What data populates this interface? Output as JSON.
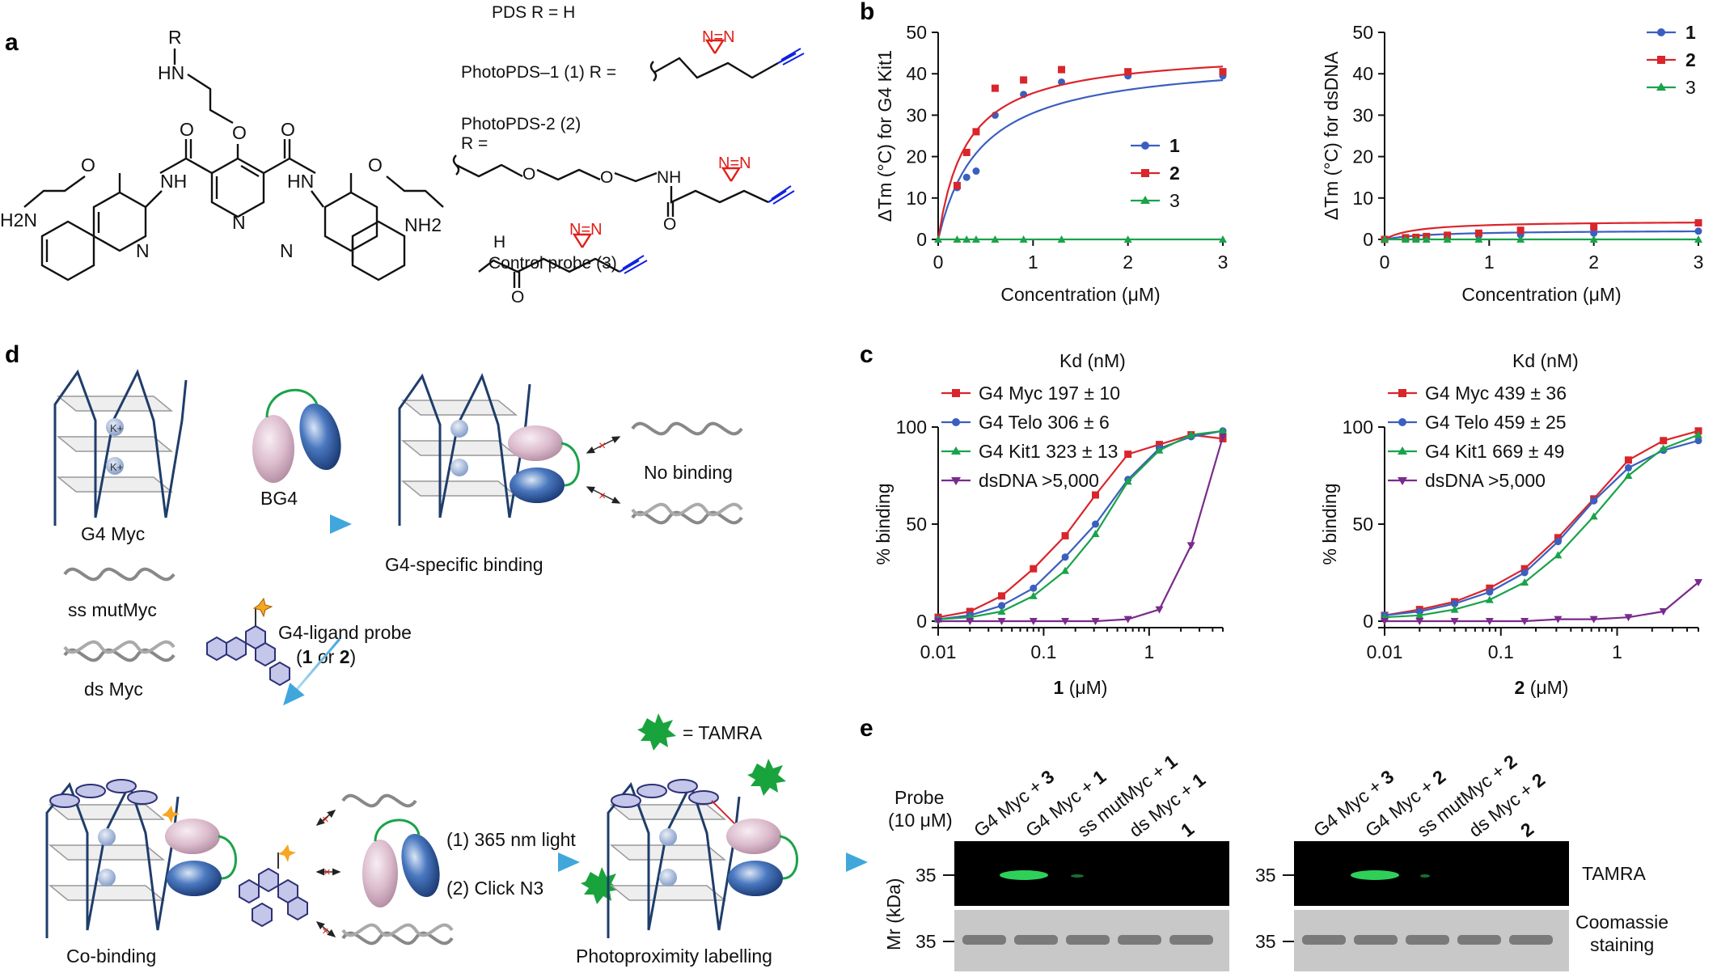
{
  "panels": {
    "a": "a",
    "b": "b",
    "c": "c",
    "d": "d",
    "e": "e"
  },
  "structures": {
    "pds_r": "PDS R = H",
    "photopds1": "PhotoPDS–1 (1) R =",
    "photopds2_line1": "PhotoPDS-2 (2)",
    "photopds2_line2": "R =",
    "control": "Control probe (3)",
    "atoms": {
      "r": "R",
      "hn": "HN",
      "o": "O",
      "n": "N",
      "nh": "NH",
      "hn2": "HN",
      "h2n": "H2N",
      "nh2": "NH2",
      "nn": "N=N"
    }
  },
  "colors": {
    "s1": "#3b5fbf",
    "s2": "#d9252b",
    "s3": "#1aa34a",
    "s4": "#7a2a8c",
    "diazirine": "#e0201b",
    "alkyne": "#1020e0",
    "tamra": "#19a33d",
    "antibody_blue": "#2a55a5",
    "antibody_pink": "#d8b5c8"
  },
  "chart_data": [
    {
      "type": "scatter",
      "id": "b-left",
      "xlabel": "Concentration (μM)",
      "ylabel": "ΔTm (°C) for G4 Kit1",
      "xlim": [
        0,
        3
      ],
      "ylim": [
        0,
        50
      ],
      "xticks": [
        "0",
        "1",
        "2",
        "3"
      ],
      "yticks": [
        "0",
        "10",
        "20",
        "30",
        "40",
        "50"
      ],
      "legend": [
        "1",
        "2",
        "3"
      ],
      "series": [
        {
          "name": "1",
          "x": [
            0.2,
            0.3,
            0.4,
            0.6,
            0.9,
            1.3,
            2,
            3
          ],
          "y": [
            12.5,
            15,
            16.5,
            30,
            35,
            38,
            39.5,
            39.5
          ]
        },
        {
          "name": "2",
          "x": [
            0.2,
            0.3,
            0.4,
            0.6,
            0.9,
            1.3,
            2,
            3
          ],
          "y": [
            13,
            21,
            26,
            36.5,
            38.5,
            41,
            40.5,
            40.5
          ]
        },
        {
          "name": "3",
          "x": [
            0,
            0.2,
            0.3,
            0.4,
            0.6,
            0.9,
            1.3,
            2,
            3
          ],
          "y": [
            0,
            0,
            0,
            0,
            0,
            0,
            0,
            0,
            0
          ]
        }
      ]
    },
    {
      "type": "scatter",
      "id": "b-right",
      "xlabel": "Concentration (μM)",
      "ylabel": "ΔTm (°C) for dsDNA",
      "xlim": [
        0,
        3
      ],
      "ylim": [
        0,
        50
      ],
      "xticks": [
        "0",
        "1",
        "2",
        "3"
      ],
      "yticks": [
        "0",
        "10",
        "20",
        "30",
        "40",
        "50"
      ],
      "legend": [
        "1",
        "2",
        "3"
      ],
      "series": [
        {
          "name": "1",
          "x": [
            0,
            0.2,
            0.3,
            0.4,
            0.6,
            0.9,
            1.3,
            2,
            3
          ],
          "y": [
            0,
            0.2,
            0.3,
            0.4,
            0.6,
            0.9,
            1.1,
            1.5,
            2
          ]
        },
        {
          "name": "2",
          "x": [
            0,
            0.2,
            0.3,
            0.4,
            0.6,
            0.9,
            1.3,
            2,
            3
          ],
          "y": [
            0,
            0.4,
            0.5,
            0.7,
            1,
            1.5,
            2.2,
            3,
            4
          ]
        },
        {
          "name": "3",
          "x": [
            0,
            0.2,
            0.3,
            0.4,
            0.6,
            0.9,
            1.3,
            2,
            3
          ],
          "y": [
            0,
            0,
            0,
            0,
            0,
            0,
            0,
            0,
            0
          ]
        }
      ]
    },
    {
      "type": "scatter",
      "id": "c-left",
      "xlabel_bold": "1",
      "xlabel": " (μM)",
      "ylabel": "% binding",
      "kd_header": "Kd (nM)",
      "xlim": [
        0.01,
        5
      ],
      "ylim": [
        0,
        100
      ],
      "xticks": [
        "0.01",
        "0.1",
        "1"
      ],
      "yticks": [
        "0",
        "50",
        "100"
      ],
      "series": [
        {
          "name": "G4 Myc",
          "kd": "197 ± 10",
          "x": [
            0.01,
            0.02,
            0.04,
            0.08,
            0.16,
            0.31,
            0.63,
            1.25,
            2.5,
            5
          ],
          "y": [
            2,
            5,
            13,
            27,
            44,
            65,
            86,
            91,
            96,
            94
          ]
        },
        {
          "name": "G4 Telo",
          "kd": "306 ± 6",
          "x": [
            0.01,
            0.02,
            0.04,
            0.08,
            0.16,
            0.31,
            0.63,
            1.25,
            2.5,
            5
          ],
          "y": [
            1,
            3,
            8,
            17,
            33,
            50,
            73,
            89,
            95,
            98
          ]
        },
        {
          "name": "G4 Kit1",
          "kd": "323 ± 13",
          "x": [
            0.01,
            0.02,
            0.04,
            0.08,
            0.16,
            0.31,
            0.63,
            1.25,
            2.5,
            5
          ],
          "y": [
            1,
            2,
            5,
            13,
            26,
            45,
            72,
            88,
            96,
            98
          ]
        },
        {
          "name": "dsDNA",
          "kd": ">5,000",
          "x": [
            0.01,
            0.02,
            0.04,
            0.08,
            0.16,
            0.31,
            0.63,
            1.25,
            2.5,
            5
          ],
          "y": [
            0,
            0,
            0,
            0,
            0,
            0,
            1,
            6,
            39,
            95
          ]
        }
      ]
    },
    {
      "type": "scatter",
      "id": "c-right",
      "xlabel_bold": "2",
      "xlabel": " (μM)",
      "ylabel": "% binding",
      "kd_header": "Kd (nM)",
      "xlim": [
        0.01,
        5
      ],
      "ylim": [
        0,
        100
      ],
      "xticks": [
        "0.01",
        "0.1",
        "1"
      ],
      "yticks": [
        "0",
        "50",
        "100"
      ],
      "series": [
        {
          "name": "G4 Myc",
          "kd": "439 ± 36",
          "x": [
            0.01,
            0.02,
            0.04,
            0.08,
            0.16,
            0.31,
            0.63,
            1.25,
            2.5,
            5
          ],
          "y": [
            3,
            6,
            10,
            17,
            27,
            43,
            63,
            83,
            93,
            98
          ]
        },
        {
          "name": "G4 Telo",
          "kd": "459 ± 25",
          "x": [
            0.01,
            0.02,
            0.04,
            0.08,
            0.16,
            0.31,
            0.63,
            1.25,
            2.5,
            5
          ],
          "y": [
            3,
            5,
            9,
            15,
            25,
            41,
            62,
            79,
            88,
            93
          ]
        },
        {
          "name": "G4 Kit1",
          "kd": "669 ± 49",
          "x": [
            0.01,
            0.02,
            0.04,
            0.08,
            0.16,
            0.31,
            0.63,
            1.25,
            2.5,
            5
          ],
          "y": [
            2,
            3,
            6,
            11,
            20,
            34,
            54,
            75,
            89,
            96
          ]
        },
        {
          "name": "dsDNA",
          "kd": ">5,000",
          "x": [
            0.01,
            0.02,
            0.04,
            0.08,
            0.16,
            0.31,
            0.63,
            1.25,
            2.5,
            5
          ],
          "y": [
            0,
            0,
            0,
            0,
            0,
            1,
            1,
            2,
            5,
            20
          ]
        }
      ]
    }
  ],
  "schematic": {
    "g4myc": "G4 Myc",
    "ssmutmyc": "ss mutMyc",
    "dsmyc": "ds Myc",
    "bg4": "BG4",
    "g4specific": "G4-specific binding",
    "nobinding": "No binding",
    "probe_l1": "G4-ligand probe",
    "probe_l2_a": "(",
    "probe_l2_b": "1",
    "probe_l2_c": " or ",
    "probe_l2_d": "2",
    "probe_l2_e": ")",
    "tamra_def": "= TAMRA",
    "step1": "(1) 365 nm light",
    "step2": "(2) Click N3",
    "cobinding": "Co-binding",
    "photoprox": "Photoproximity labelling",
    "kplus": "K+"
  },
  "gel": {
    "probe_label": "Probe",
    "probe_conc": "(10 μM)",
    "mr_label": "Mr (kDa)",
    "lanes_left": [
      [
        "G4 Myc + ",
        "3"
      ],
      [
        "G4 Myc + ",
        "1"
      ],
      [
        "ss mutMyc + ",
        "1"
      ],
      [
        "ds Myc + ",
        "1"
      ],
      [
        "",
        "1"
      ]
    ],
    "lanes_right": [
      [
        "G4 Myc + ",
        "3"
      ],
      [
        "G4 Myc + ",
        "2"
      ],
      [
        "ss mutMyc + ",
        "2"
      ],
      [
        "ds Myc + ",
        "2"
      ],
      [
        "",
        "2"
      ]
    ],
    "marker": "35",
    "tamra": "TAMRA",
    "coomassie_l1": "Coomassie",
    "coomassie_l2": "staining"
  }
}
